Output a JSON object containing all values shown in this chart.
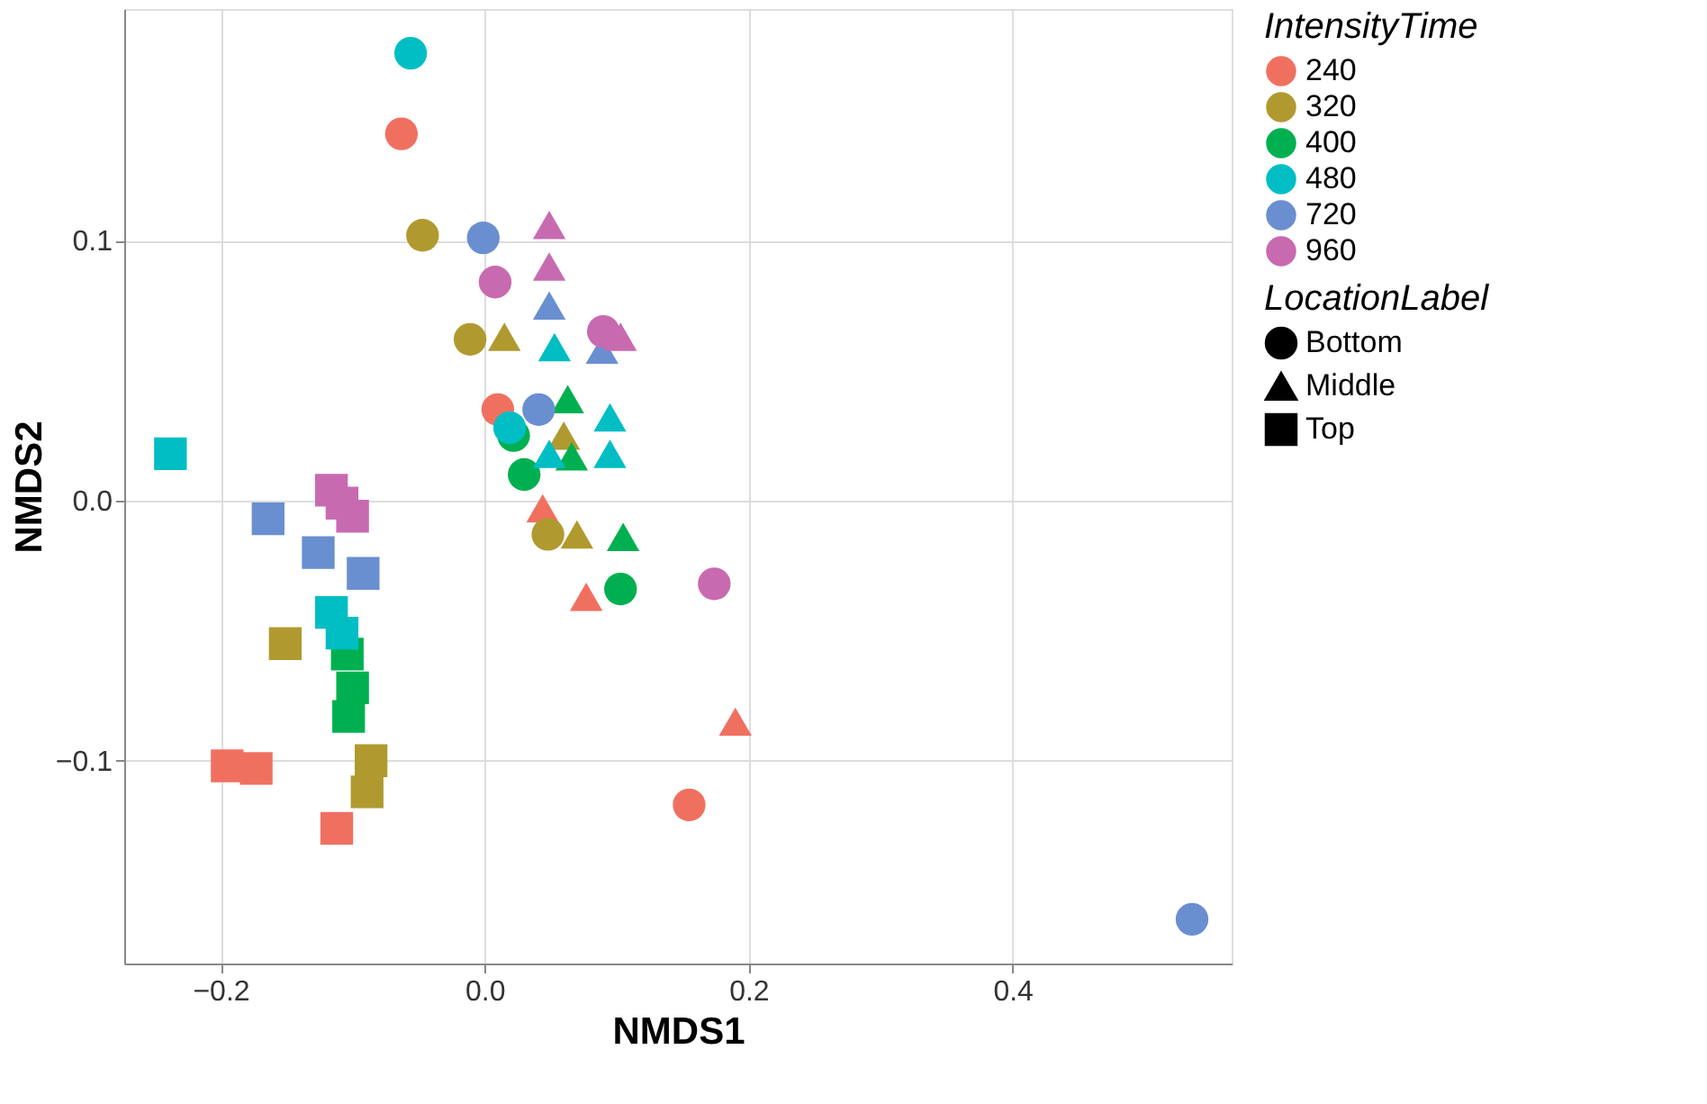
{
  "chart_data": {
    "type": "scatter",
    "xlabel": "NMDS1",
    "ylabel": "NMDS2",
    "legend_title": "IntensityTime",
    "annotations": [
      "LocationLabel"
    ],
    "xlim": [
      -0.273,
      0.566
    ],
    "ylim": [
      -0.178,
      0.189
    ],
    "xticks": [
      -0.2,
      {
        "value": 0,
        "label": "0.0"
      },
      0.2,
      0.4
    ],
    "yticks": [
      -0.1,
      {
        "value": 0,
        "label": "0.0"
      },
      0.1
    ],
    "grid": true,
    "legend": "right",
    "series": [
      {
        "name": "Bottom",
        "marker": "circle",
        "color": "#000000"
      },
      {
        "name": "Middle",
        "marker": "triangle",
        "color": "#000000"
      },
      {
        "name": "Top",
        "marker": "square",
        "color": "#000000"
      },
      {
        "name": "240",
        "color": "#f07060",
        "marker": "circle",
        "x": [
          -0.063,
          0.01,
          0.155
        ],
        "values": [
          0.141,
          0.035,
          -0.117
        ]
      },
      {
        "color": "#f07060",
        "marker": "triangle",
        "x": [
          0.044,
          0.077,
          0.19
        ],
        "values": [
          -0.003,
          -0.037,
          -0.085
        ]
      },
      {
        "color": "#f07060",
        "marker": "square",
        "x": [
          -0.195,
          -0.173,
          -0.112
        ],
        "values": [
          -0.102,
          -0.103,
          -0.126
        ]
      },
      {
        "name": "320",
        "color": "#b09a30",
        "marker": "circle",
        "x": [
          -0.047,
          -0.011,
          0.048
        ],
        "values": [
          0.102,
          0.062,
          -0.013
        ]
      },
      {
        "color": "#b09a30",
        "marker": "triangle",
        "x": [
          0.015,
          0.06,
          0.07
        ],
        "values": [
          0.063,
          0.025,
          -0.013
        ]
      },
      {
        "color": "#b09a30",
        "marker": "square",
        "x": [
          -0.151,
          -0.086,
          -0.089
        ],
        "values": [
          -0.055,
          -0.1,
          -0.112
        ]
      },
      {
        "name": "400",
        "color": "#00b050",
        "marker": "circle",
        "x": [
          0.03,
          0.022,
          0.103
        ],
        "values": [
          0.01,
          0.025,
          -0.034
        ]
      },
      {
        "color": "#00b050",
        "marker": "triangle",
        "x": [
          0.063,
          0.105,
          0.066
        ],
        "values": [
          0.039,
          -0.014,
          0.017
        ]
      },
      {
        "color": "#00b050",
        "marker": "square",
        "x": [
          -0.104,
          -0.1,
          -0.103
        ],
        "values": [
          -0.059,
          -0.072,
          -0.083
        ]
      },
      {
        "name": "480",
        "color": "#00bec4",
        "marker": "circle",
        "x": [
          -0.056,
          0.019
        ],
        "values": [
          0.172,
          0.028
        ]
      },
      {
        "color": "#00bec4",
        "marker": "triangle",
        "x": [
          0.053,
          0.095,
          0.095,
          0.049
        ],
        "values": [
          0.059,
          0.032,
          0.018,
          0.018
        ]
      },
      {
        "color": "#00bec4",
        "marker": "square",
        "x": [
          -0.238,
          -0.116,
          -0.108
        ],
        "values": [
          0.018,
          -0.043,
          -0.051
        ]
      },
      {
        "name": "720",
        "color": "#6a8fd0",
        "marker": "circle",
        "x": [
          -0.001,
          0.041,
          0.536
        ],
        "values": [
          0.101,
          0.035,
          -0.161
        ]
      },
      {
        "color": "#6a8fd0",
        "marker": "triangle",
        "x": [
          0.049,
          0.089
        ],
        "values": [
          0.075,
          0.058
        ]
      },
      {
        "color": "#6a8fd0",
        "marker": "square",
        "x": [
          -0.164,
          -0.126,
          -0.092
        ],
        "values": [
          -0.007,
          -0.02,
          -0.028
        ]
      },
      {
        "name": "960",
        "color": "#c86ab0",
        "marker": "circle",
        "x": [
          0.008,
          0.09,
          0.174
        ],
        "values": [
          0.084,
          0.065,
          -0.032
        ]
      },
      {
        "color": "#c86ab0",
        "marker": "triangle",
        "x": [
          0.049,
          0.049,
          0.103
        ],
        "values": [
          0.106,
          0.09,
          0.063
        ]
      },
      {
        "color": "#c86ab0",
        "marker": "square",
        "x": [
          -0.116,
          -0.108,
          -0.1
        ],
        "values": [
          0.004,
          -0.001,
          -0.006
        ]
      }
    ]
  }
}
